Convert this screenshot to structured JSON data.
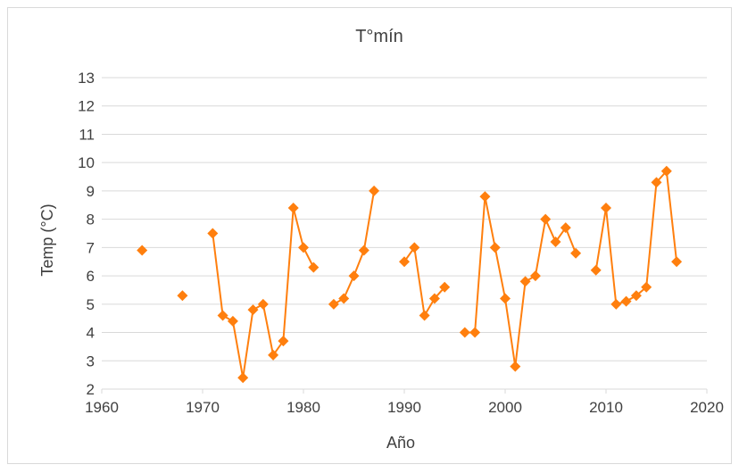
{
  "chart_data": {
    "type": "scatter",
    "title": "T°mín",
    "xlabel": "Año",
    "ylabel": "Temp (°C)",
    "xlim": [
      1960,
      2020
    ],
    "ylim": [
      2,
      13
    ],
    "x_ticks": [
      "1960",
      "1970",
      "1980",
      "1990",
      "2000",
      "2010",
      "2020"
    ],
    "y_ticks": [
      "2",
      "3",
      "4",
      "5",
      "6",
      "7",
      "8",
      "9",
      "10",
      "11",
      "12",
      "13"
    ],
    "grid": "horizontal",
    "legend": "none",
    "marker": "diamond",
    "connect_consecutive_years": true,
    "series_color": "#ff7f0e",
    "grid_color": "#d9d9d9",
    "points": [
      [
        1964,
        6.9
      ],
      [
        1968,
        5.3
      ],
      [
        1971,
        7.5
      ],
      [
        1972,
        4.6
      ],
      [
        1973,
        4.4
      ],
      [
        1974,
        2.4
      ],
      [
        1975,
        4.8
      ],
      [
        1976,
        5.0
      ],
      [
        1977,
        3.2
      ],
      [
        1978,
        3.7
      ],
      [
        1979,
        8.4
      ],
      [
        1980,
        7.0
      ],
      [
        1981,
        6.3
      ],
      [
        1983,
        5.0
      ],
      [
        1984,
        5.2
      ],
      [
        1985,
        6.0
      ],
      [
        1986,
        6.9
      ],
      [
        1987,
        9.0
      ],
      [
        1990,
        6.5
      ],
      [
        1991,
        7.0
      ],
      [
        1992,
        4.6
      ],
      [
        1993,
        5.2
      ],
      [
        1994,
        5.6
      ],
      [
        1996,
        4.0
      ],
      [
        1997,
        4.0
      ],
      [
        1998,
        8.8
      ],
      [
        1999,
        7.0
      ],
      [
        2000,
        5.2
      ],
      [
        2001,
        2.8
      ],
      [
        2002,
        5.8
      ],
      [
        2003,
        6.0
      ],
      [
        2004,
        8.0
      ],
      [
        2005,
        7.2
      ],
      [
        2006,
        7.7
      ],
      [
        2007,
        6.8
      ],
      [
        2009,
        6.2
      ],
      [
        2010,
        8.4
      ],
      [
        2011,
        5.0
      ],
      [
        2012,
        5.1
      ],
      [
        2013,
        5.3
      ],
      [
        2014,
        5.6
      ],
      [
        2015,
        9.3
      ],
      [
        2016,
        9.7
      ],
      [
        2017,
        6.5
      ]
    ]
  }
}
